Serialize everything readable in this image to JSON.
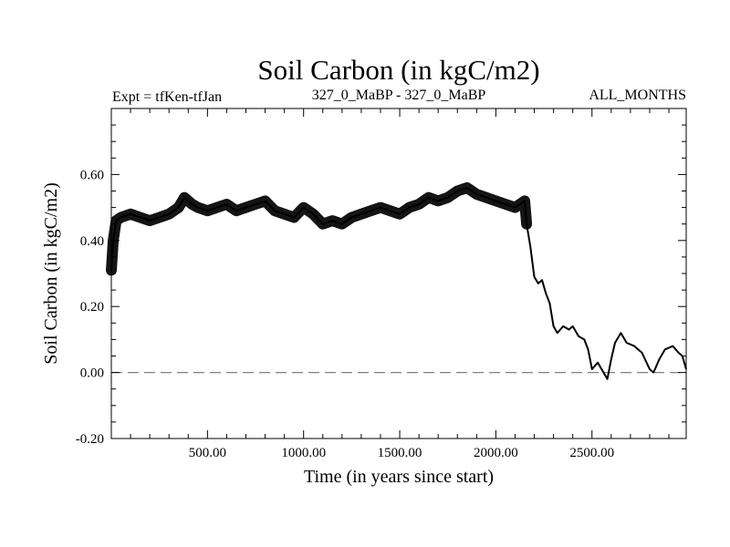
{
  "chart_data": {
    "type": "line",
    "title": "Soil Carbon (in kgC/m2)",
    "subtitle_left": "Expt = tfKen-tfJan",
    "subtitle_center": "327_0_MaBP - 327_0_MaBP",
    "subtitle_right": "ALL_MONTHS",
    "xlabel": "Time (in years since start)",
    "ylabel": "Soil Carbon (in kgC/m2)",
    "xlim": [
      0,
      2990
    ],
    "ylim": [
      -0.2,
      0.8
    ],
    "xticks": [
      500,
      1000,
      1500,
      2000,
      2500
    ],
    "xtick_labels": [
      "500.00",
      "1000.00",
      "1500.00",
      "2000.00",
      "2500.00"
    ],
    "yticks": [
      -0.2,
      0.0,
      0.2,
      0.4,
      0.6
    ],
    "ytick_labels": [
      "-0.20",
      "0.00",
      "0.20",
      "0.40",
      "0.60"
    ],
    "grid": false,
    "reference_line": {
      "y": 0.0,
      "style": "dashed",
      "color": "#808080"
    },
    "series": [
      {
        "color": "#000000",
        "x": [
          0,
          10,
          25,
          50,
          100,
          150,
          200,
          250,
          300,
          350,
          380,
          420,
          450,
          500,
          550,
          600,
          650,
          700,
          750,
          800,
          850,
          900,
          950,
          1000,
          1050,
          1100,
          1150,
          1200,
          1250,
          1300,
          1350,
          1400,
          1450,
          1500,
          1550,
          1600,
          1650,
          1700,
          1750,
          1800,
          1850,
          1900,
          1950,
          2000,
          2050,
          2100,
          2150,
          2160,
          2180,
          2200,
          2220,
          2240,
          2260,
          2280,
          2300,
          2320,
          2350,
          2380,
          2400,
          2430,
          2460,
          2480,
          2500,
          2530,
          2560,
          2580,
          2600,
          2620,
          2650,
          2680,
          2720,
          2760,
          2800,
          2820,
          2850,
          2880,
          2920,
          2950,
          2970,
          2990
        ],
        "values": [
          0.31,
          0.4,
          0.46,
          0.47,
          0.48,
          0.47,
          0.46,
          0.47,
          0.48,
          0.5,
          0.53,
          0.51,
          0.5,
          0.49,
          0.5,
          0.51,
          0.49,
          0.5,
          0.51,
          0.52,
          0.49,
          0.48,
          0.47,
          0.5,
          0.48,
          0.45,
          0.46,
          0.45,
          0.47,
          0.48,
          0.49,
          0.5,
          0.49,
          0.48,
          0.5,
          0.51,
          0.53,
          0.52,
          0.53,
          0.55,
          0.56,
          0.54,
          0.53,
          0.52,
          0.51,
          0.5,
          0.52,
          0.45,
          0.38,
          0.29,
          0.27,
          0.28,
          0.24,
          0.21,
          0.14,
          0.12,
          0.14,
          0.13,
          0.14,
          0.11,
          0.1,
          0.07,
          0.01,
          0.03,
          0.0,
          -0.02,
          0.04,
          0.09,
          0.12,
          0.09,
          0.08,
          0.06,
          0.01,
          0.0,
          0.04,
          0.07,
          0.08,
          0.06,
          0.05,
          0.01
        ]
      }
    ]
  }
}
